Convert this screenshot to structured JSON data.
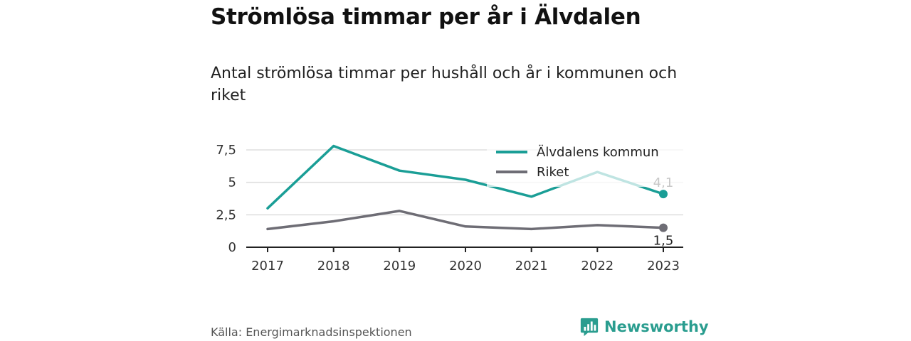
{
  "page": {
    "title": "Strömlösa timmar per år i Älvdalen",
    "subtitle": "Antal strömlösa timmar per hushåll och år i kommunen och riket",
    "source": "Källa: Energimarknadsinspektionen",
    "brand": "Newsworthy"
  },
  "colors": {
    "kommun": "#1a9e96",
    "riket": "#6e6d75",
    "grid": "#dddddd",
    "axis": "#222222",
    "brand": "#2a9d8f"
  },
  "chart_data": {
    "type": "line",
    "title": "Strömlösa timmar per år i Älvdalen",
    "subtitle": "Antal strömlösa timmar per hushåll och år i kommunen och riket",
    "x": [
      "2017",
      "2018",
      "2019",
      "2020",
      "2021",
      "2022",
      "2023"
    ],
    "yticks": [
      "0",
      "2,5",
      "5",
      "7,5"
    ],
    "ytick_values": [
      0,
      2.5,
      5,
      7.5
    ],
    "ylim": [
      0,
      7.5
    ],
    "grid": true,
    "legend_position": "top-right",
    "series": [
      {
        "name": "Älvdalens kommun",
        "values": [
          3.0,
          7.8,
          5.9,
          5.2,
          3.9,
          5.8,
          4.1
        ],
        "end_label": "4,1"
      },
      {
        "name": "Riket",
        "values": [
          1.4,
          2.0,
          2.8,
          1.6,
          1.4,
          1.7,
          1.5
        ],
        "end_label": "1,5"
      }
    ]
  }
}
